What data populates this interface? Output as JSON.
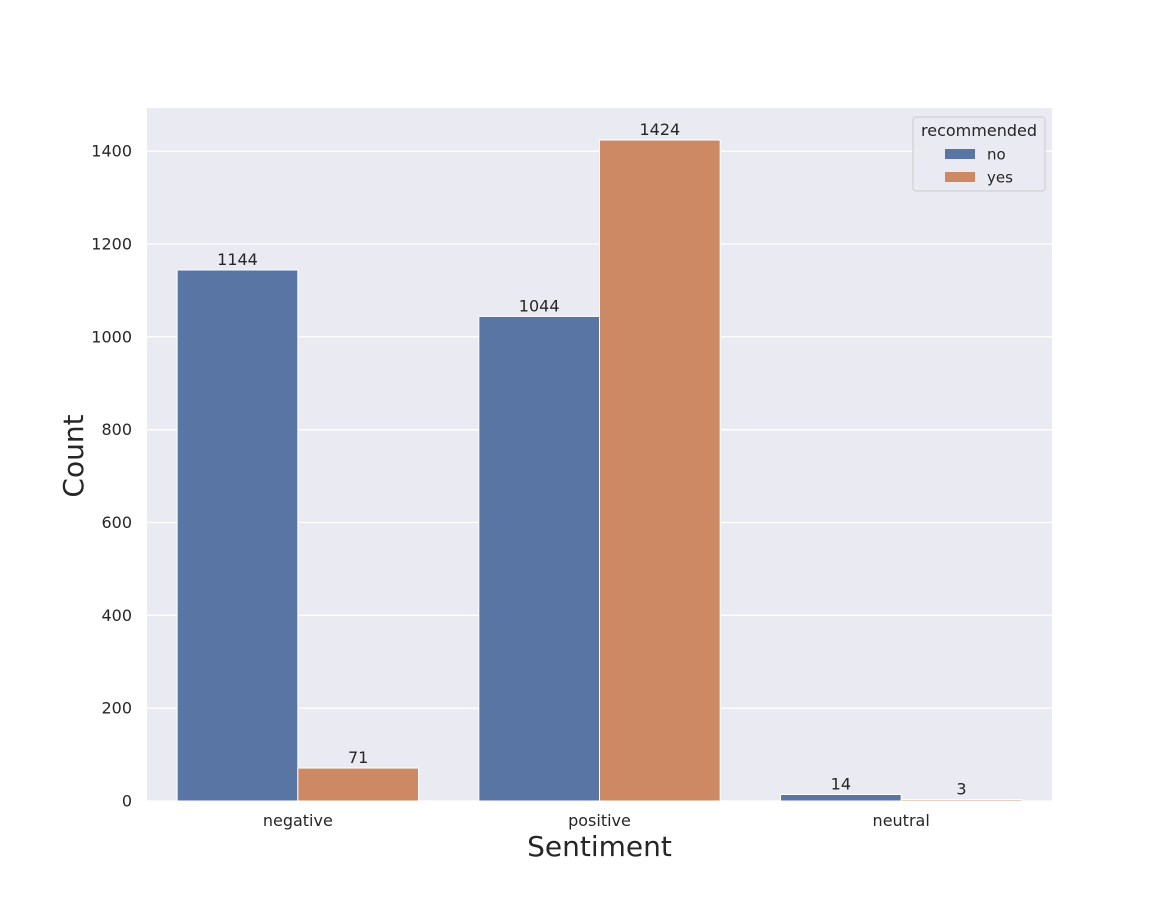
{
  "chart_data": {
    "type": "bar",
    "xlabel": "Sentiment",
    "ylabel": "Count",
    "categories": [
      "negative",
      "positive",
      "neutral"
    ],
    "series": [
      {
        "name": "no",
        "values": [
          1144,
          1044,
          14
        ],
        "color": "#5875a4"
      },
      {
        "name": "yes",
        "values": [
          71,
          1424,
          3
        ],
        "color": "#cc8963"
      }
    ],
    "ylim": [
      0,
      1493
    ],
    "yticks": [
      0,
      200,
      400,
      600,
      800,
      1000,
      1200,
      1400
    ],
    "grid": true,
    "legend": {
      "title": "recommended",
      "placement": "top-right"
    },
    "plot_background": "#eaeaf2"
  }
}
